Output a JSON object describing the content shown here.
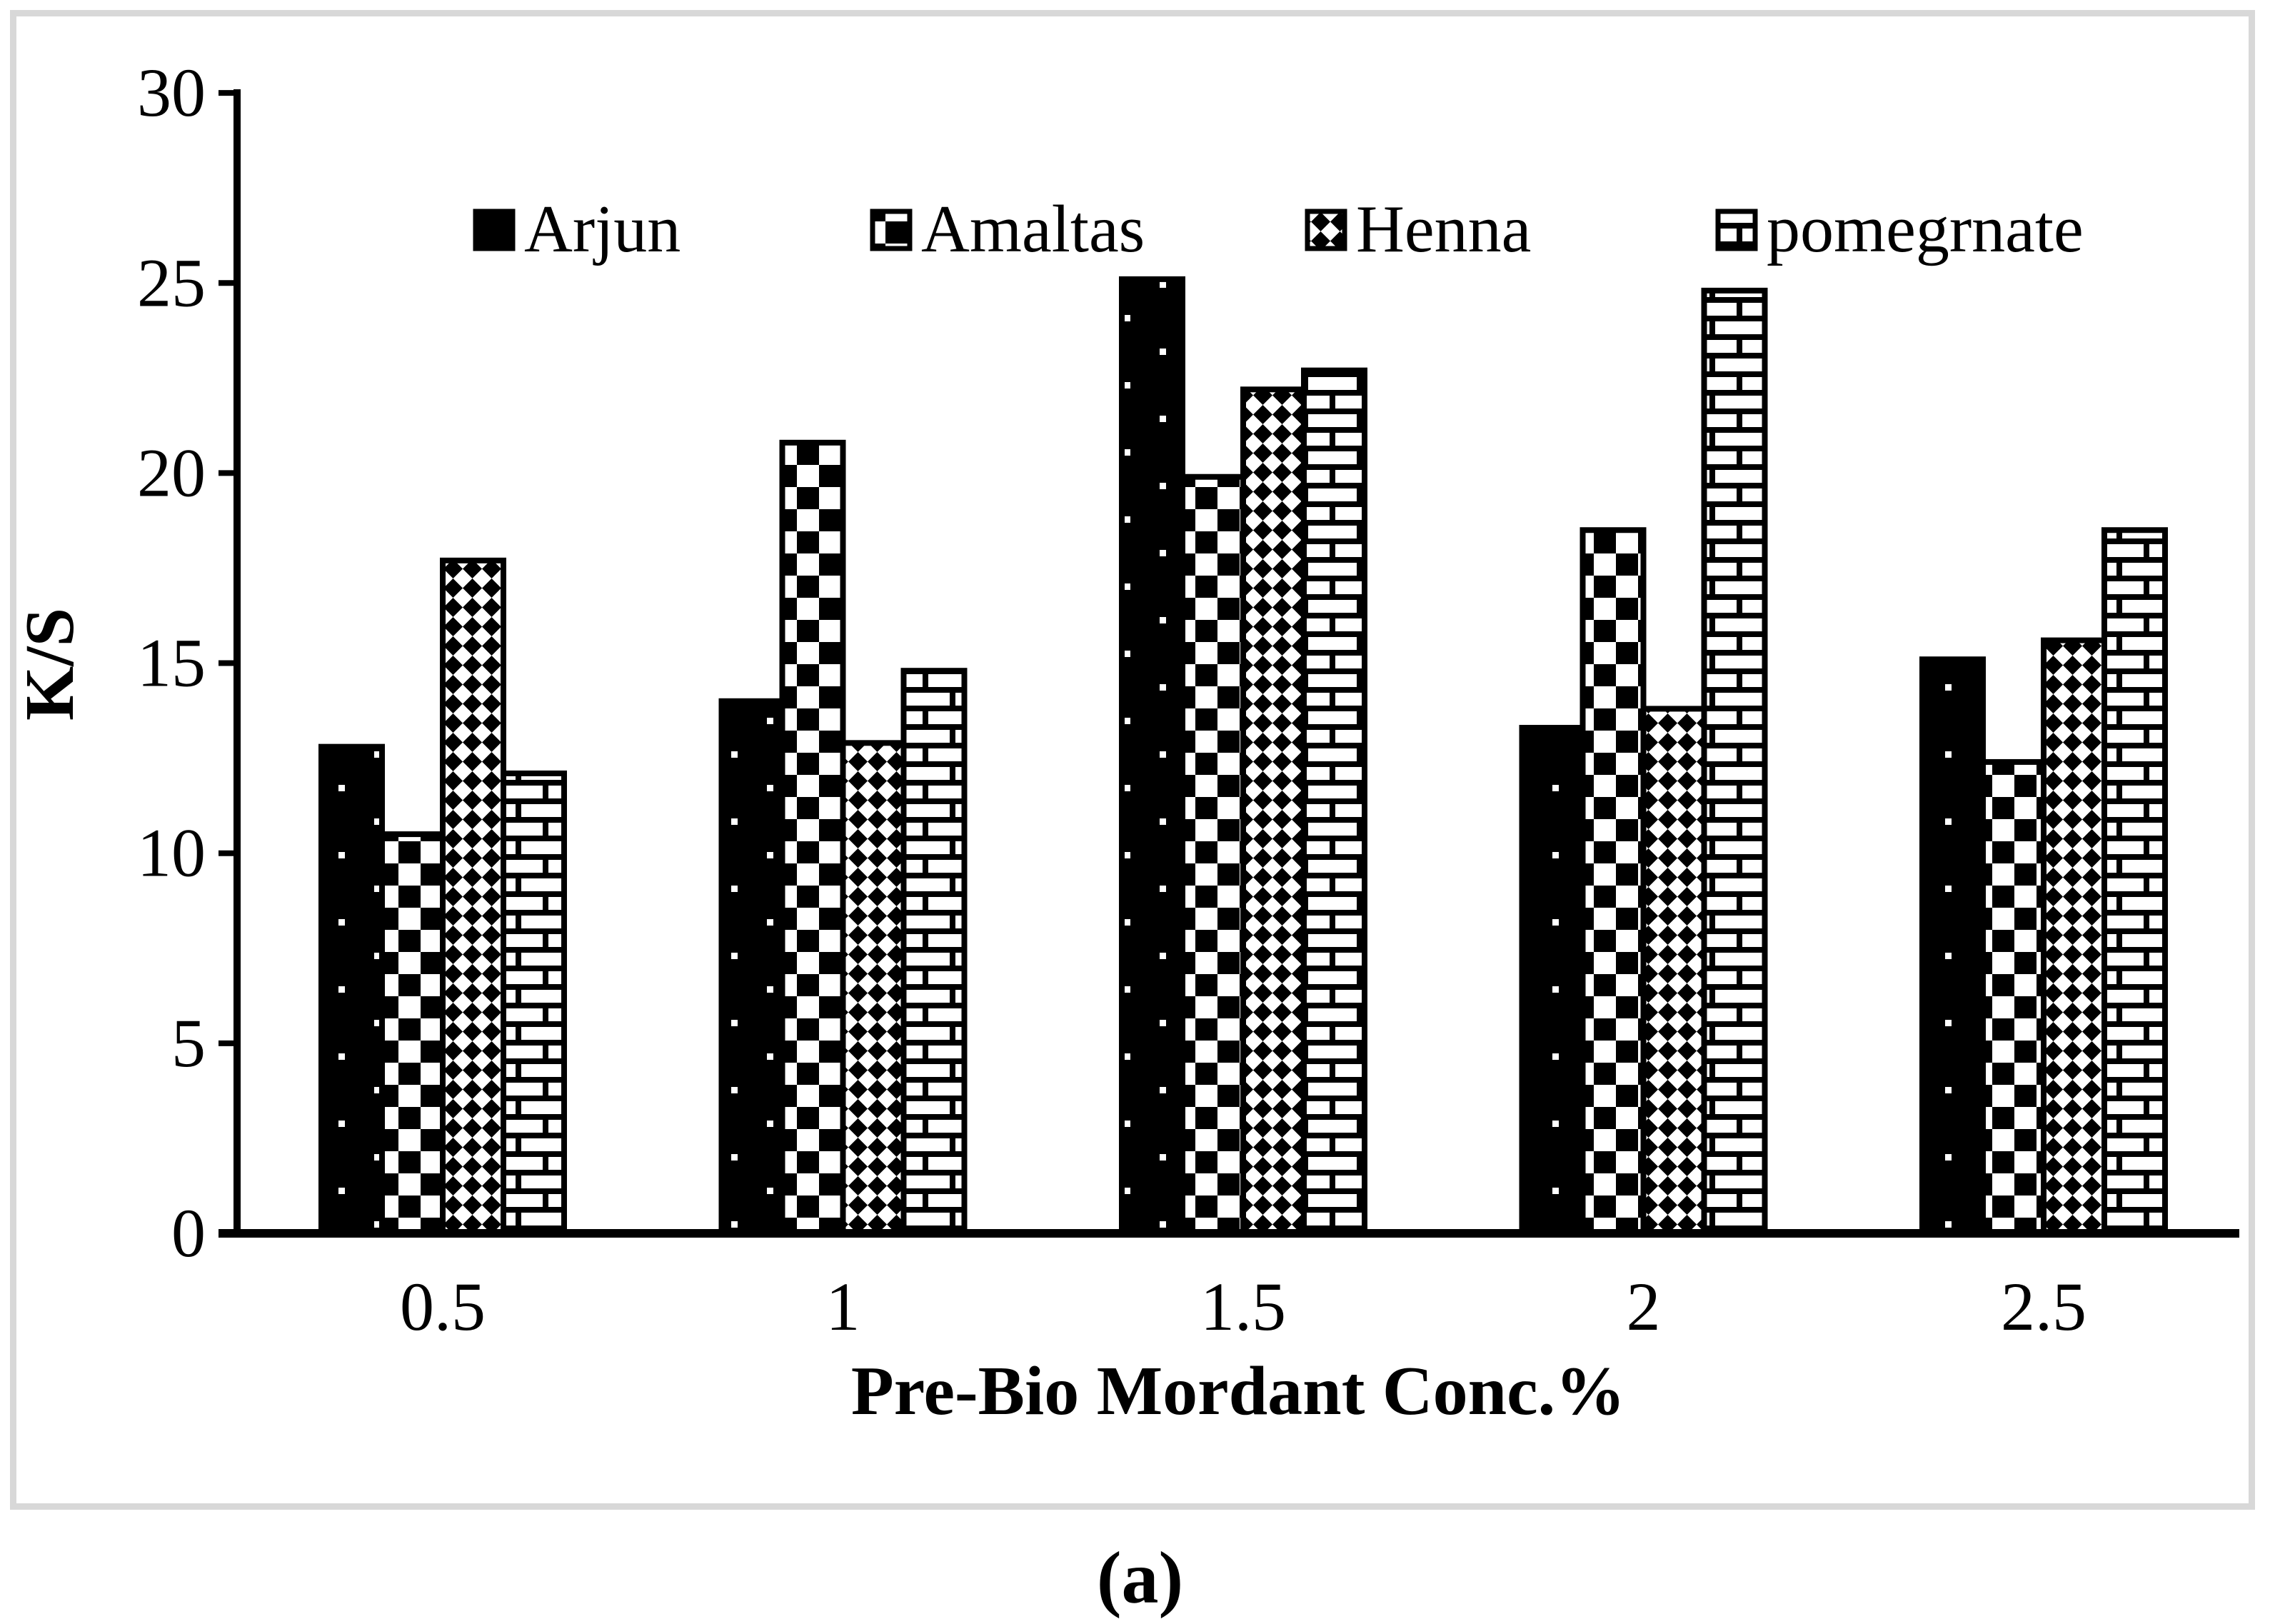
{
  "figure": {
    "caption": "(a)"
  },
  "chart_data": {
    "type": "bar",
    "title": "",
    "xlabel": "Pre-Bio Mordant Conc.%",
    "ylabel": "K/S",
    "categories": [
      "0.5",
      "1",
      "1.5",
      "2",
      "2.5"
    ],
    "series": [
      {
        "name": "Arjun",
        "pattern": "dotted-black",
        "values": [
          12.8,
          14.0,
          25.1,
          13.3,
          15.1
        ]
      },
      {
        "name": "Amaltas",
        "pattern": "checkerboard",
        "values": [
          10.5,
          20.8,
          19.9,
          18.5,
          12.4
        ]
      },
      {
        "name": "Henna",
        "pattern": "diagonal-checker",
        "values": [
          17.7,
          12.9,
          22.2,
          13.8,
          15.6
        ]
      },
      {
        "name": "pomegrnate",
        "pattern": "brick",
        "values": [
          12.1,
          14.8,
          22.7,
          24.8,
          18.5
        ]
      }
    ],
    "ylim": [
      0,
      30
    ],
    "yticks": [
      0,
      5,
      10,
      15,
      20,
      25,
      30
    ],
    "grid": false,
    "legend_position": "top"
  },
  "colors": {
    "ink": "#000000",
    "background": "#ffffff",
    "frame": "#d8d8d8"
  }
}
